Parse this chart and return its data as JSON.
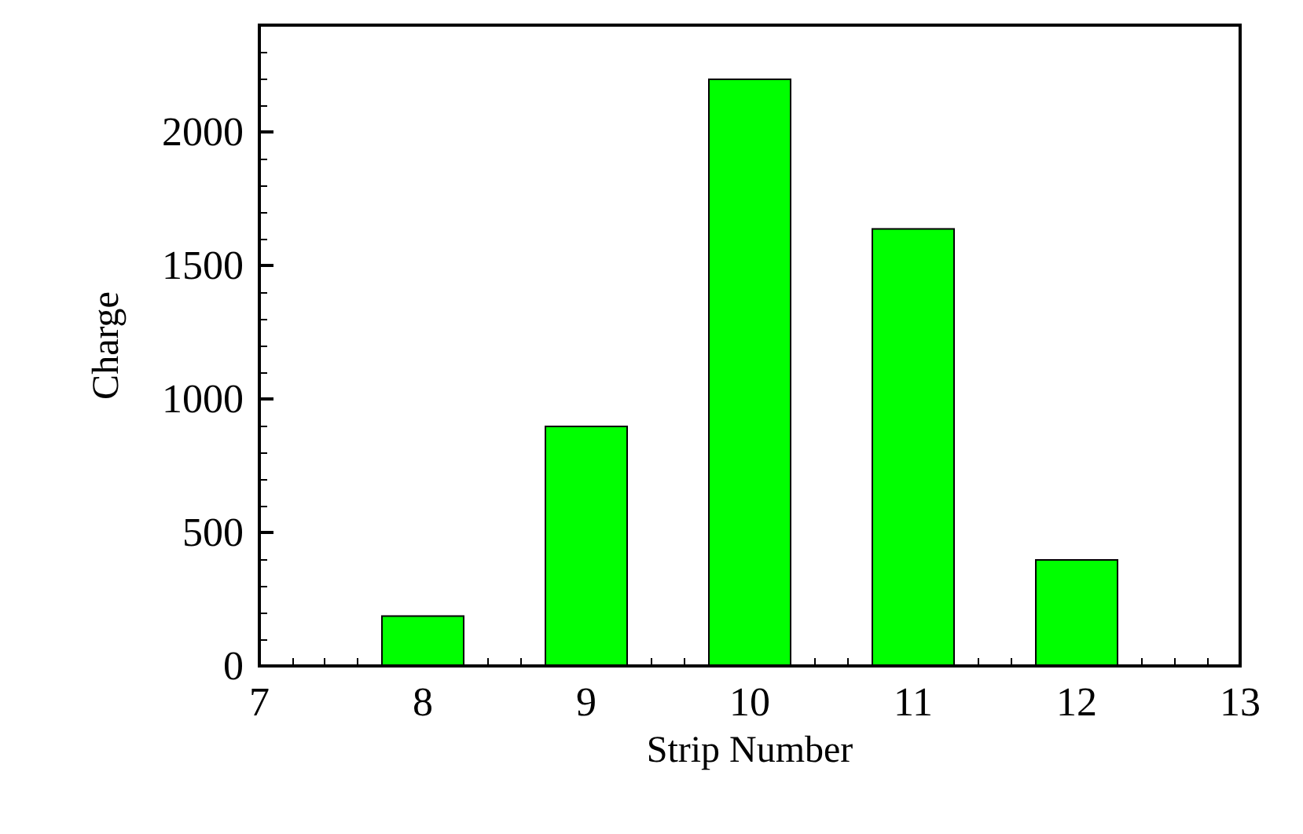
{
  "chart_data": {
    "type": "bar",
    "xlabel": "Strip Number",
    "ylabel": "Charge",
    "x": [
      8,
      9,
      10,
      11,
      12
    ],
    "values": [
      190,
      900,
      2200,
      1640,
      400
    ],
    "color": "#00ff00",
    "xlim": [
      7,
      13
    ],
    "xticks": [
      7,
      8,
      9,
      10,
      11,
      12,
      13
    ],
    "ylim": [
      0,
      2400
    ],
    "yticks": [
      0,
      500,
      1000,
      1500,
      2000
    ]
  }
}
